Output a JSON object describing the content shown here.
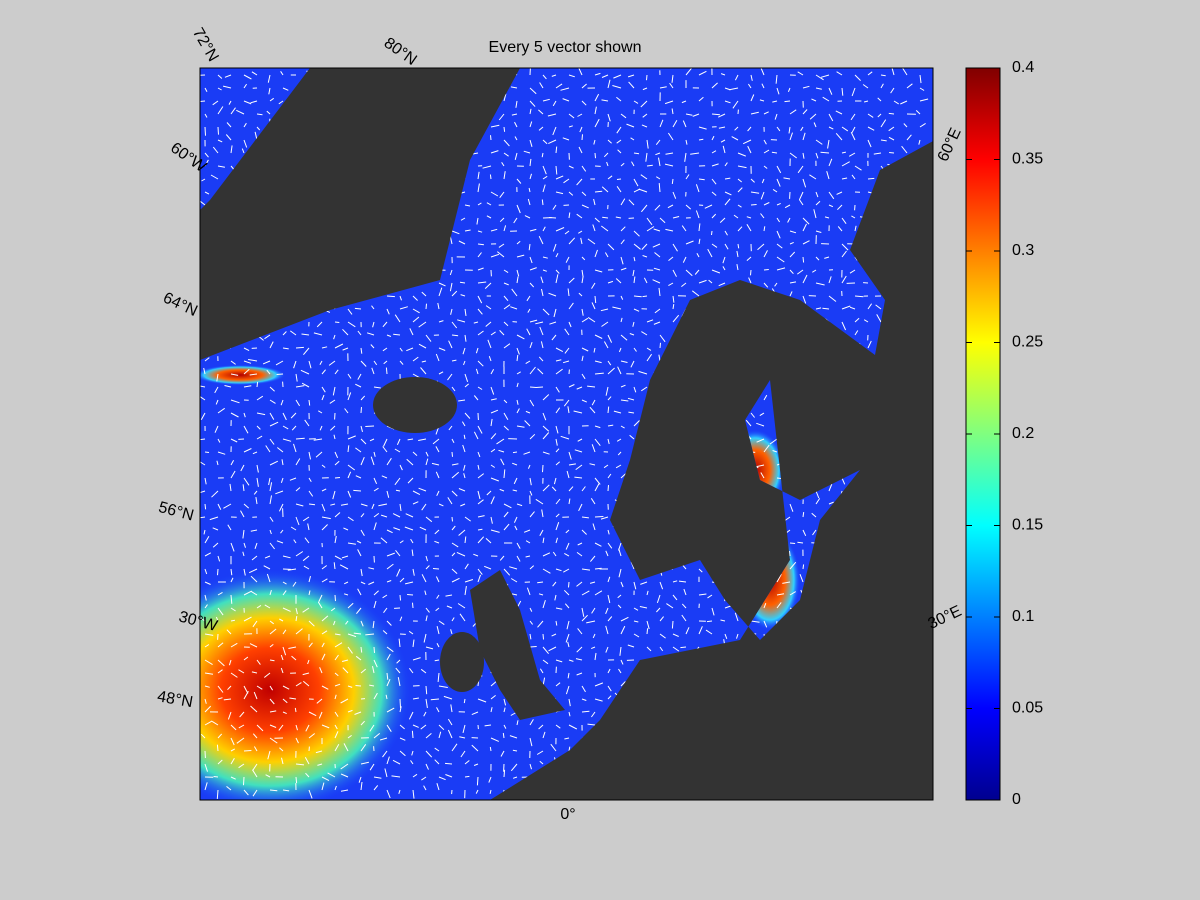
{
  "title": "Every 5 vector shown",
  "map_labels": [
    "72°N",
    "80°N",
    "60°W",
    "64°N",
    "56°N",
    "30°W",
    "48°N",
    "0°",
    "60°E",
    "30°E"
  ],
  "colorbar": {
    "lim": [
      0,
      0.4
    ],
    "ticks": [
      0,
      0.05,
      0.1,
      0.15,
      0.2,
      0.25,
      0.3,
      0.35,
      0.4
    ],
    "colormap": "jet"
  }
}
